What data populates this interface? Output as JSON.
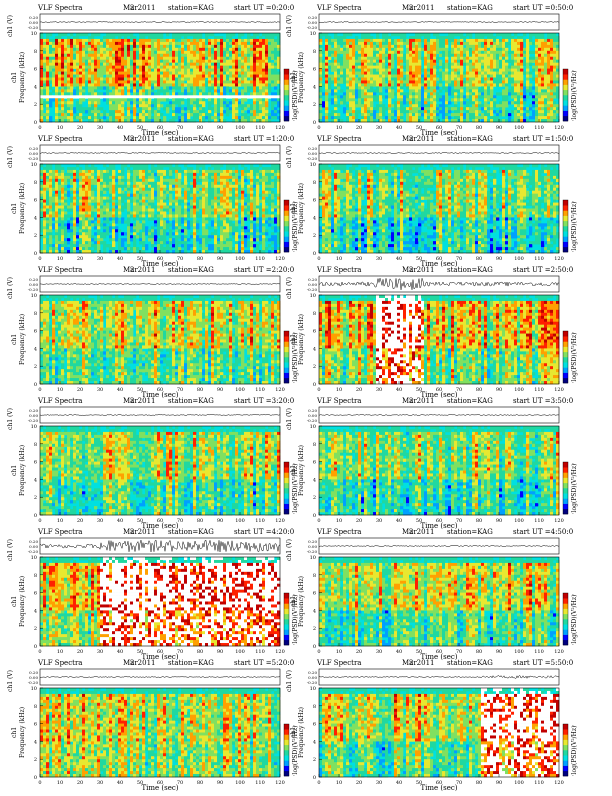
{
  "page": {
    "columns": 2,
    "rows": 6
  },
  "common": {
    "header_left": "VLF Spectra",
    "date": "Mar2011",
    "date_overlap": "2",
    "station": "station=KAG",
    "start_prefix": "start  UT =",
    "waveform_ylabel": "ch1 (V)",
    "waveform_ticks": [
      "0.20",
      "0.00",
      "-0.20"
    ],
    "freq_ylabel_ch": "ch1",
    "freq_ylabel": "Frequency  (kHz)",
    "freq_ticks": [
      "10",
      "8",
      "6",
      "4",
      "2",
      "0"
    ],
    "time_xlabel": "Time  (sec)",
    "time_ticks": [
      "0",
      "10",
      "20",
      "30",
      "40",
      "50",
      "60",
      "70",
      "80",
      "90",
      "100",
      "110",
      "120"
    ],
    "colorbar_label": "log(PSD)(V²/Hz)",
    "colorbar_ticks": [
      "-",
      "-"
    ],
    "palette": [
      "#00007f",
      "#0000ff",
      "#00a0ff",
      "#00e0e0",
      "#20d8a0",
      "#80e060",
      "#e8e830",
      "#ffa000",
      "#ff2000",
      "#c00000",
      "#ffffff"
    ]
  },
  "chart_data": [
    {
      "type": "heatmap",
      "start_ut": "0:20:0",
      "xlim": [
        0,
        120
      ],
      "ylim_khz": [
        0,
        10
      ],
      "waveform_activity": "low",
      "activity": [
        0.55,
        0.25,
        0.7
      ],
      "bursts": [],
      "tone_khz": 2.8
    },
    {
      "type": "heatmap",
      "start_ut": "0:50:0",
      "xlim": [
        0,
        120
      ],
      "ylim_khz": [
        0,
        10
      ],
      "waveform_activity": "low",
      "activity": [
        0.4,
        0.2,
        0.7
      ],
      "bursts": []
    },
    {
      "type": "heatmap",
      "start_ut": "1:20:0",
      "xlim": [
        0,
        120
      ],
      "ylim_khz": [
        0,
        10
      ],
      "waveform_activity": "low",
      "activity": [
        0.35,
        0.15,
        0.65
      ],
      "bursts": []
    },
    {
      "type": "heatmap",
      "start_ut": "1:50:0",
      "xlim": [
        0,
        120
      ],
      "ylim_khz": [
        0,
        10
      ],
      "waveform_activity": "low",
      "activity": [
        0.35,
        0.15,
        0.65
      ],
      "bursts": []
    },
    {
      "type": "heatmap",
      "start_ut": "2:20:0",
      "xlim": [
        0,
        120
      ],
      "ylim_khz": [
        0,
        10
      ],
      "waveform_activity": "low",
      "activity": [
        0.45,
        0.25,
        0.7
      ],
      "bursts": []
    },
    {
      "type": "heatmap",
      "start_ut": "2:50:0",
      "xlim": [
        0,
        120
      ],
      "ylim_khz": [
        0,
        10
      ],
      "waveform_activity": "high",
      "activity": [
        0.55,
        0.3,
        0.7
      ],
      "bursts": [
        [
          28,
          52
        ]
      ]
    },
    {
      "type": "heatmap",
      "start_ut": "3:20:0",
      "xlim": [
        0,
        120
      ],
      "ylim_khz": [
        0,
        10
      ],
      "waveform_activity": "low",
      "activity": [
        0.4,
        0.2,
        0.65
      ],
      "bursts": []
    },
    {
      "type": "heatmap",
      "start_ut": "3:50:0",
      "xlim": [
        0,
        120
      ],
      "ylim_khz": [
        0,
        10
      ],
      "waveform_activity": "low",
      "activity": [
        0.35,
        0.15,
        0.65
      ],
      "bursts": []
    },
    {
      "type": "heatmap",
      "start_ut": "4:20:0",
      "xlim": [
        0,
        120
      ],
      "ylim_khz": [
        0,
        10
      ],
      "waveform_activity": "high",
      "activity": [
        0.5,
        0.3,
        0.65
      ],
      "bursts": [
        [
          30,
          120
        ]
      ]
    },
    {
      "type": "heatmap",
      "start_ut": "4:50:0",
      "xlim": [
        0,
        120
      ],
      "ylim_khz": [
        0,
        10
      ],
      "waveform_activity": "low",
      "activity": [
        0.45,
        0.2,
        0.7
      ],
      "bursts": []
    },
    {
      "type": "heatmap",
      "start_ut": "5:20:0",
      "xlim": [
        0,
        120
      ],
      "ylim_khz": [
        0,
        10
      ],
      "waveform_activity": "low",
      "activity": [
        0.45,
        0.35,
        0.7
      ],
      "bursts": []
    },
    {
      "type": "heatmap",
      "start_ut": "5:50:0",
      "xlim": [
        0,
        120
      ],
      "ylim_khz": [
        0,
        10
      ],
      "waveform_activity": "low",
      "activity": [
        0.45,
        0.25,
        0.7
      ],
      "bursts": [
        [
          80,
          120
        ]
      ]
    }
  ]
}
